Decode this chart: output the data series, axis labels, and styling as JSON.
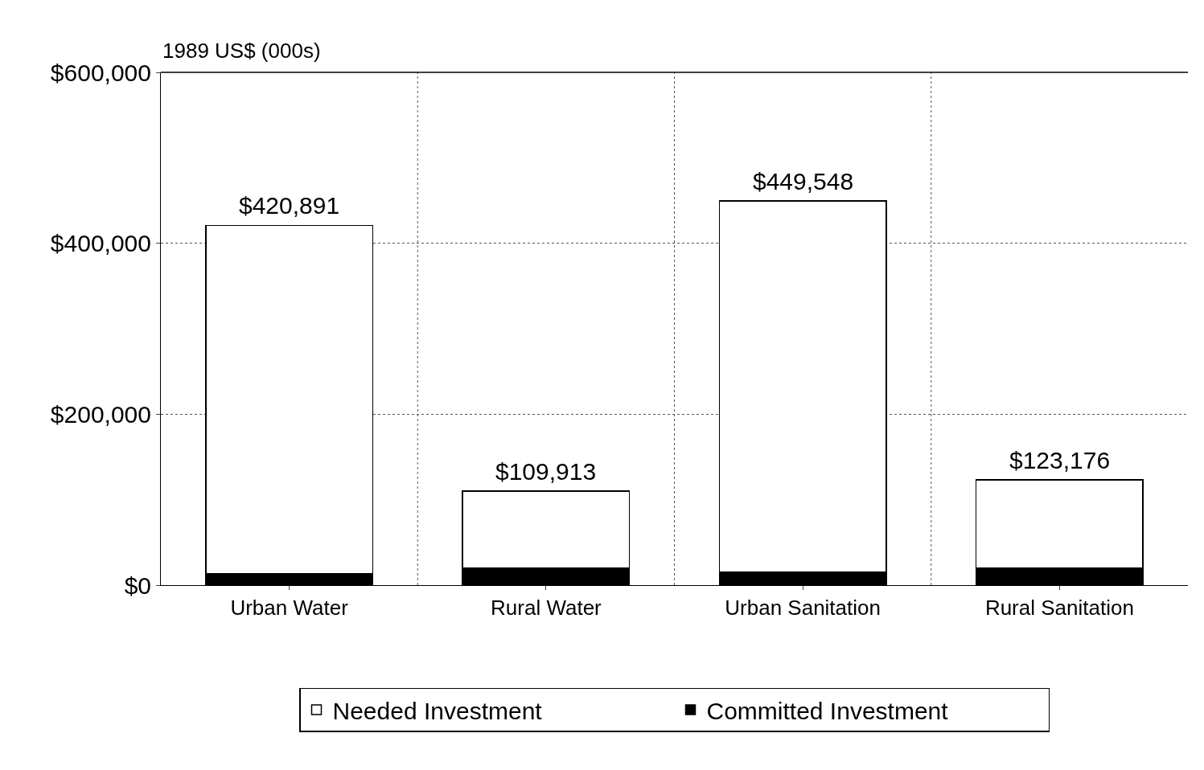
{
  "chart_data": {
    "type": "bar",
    "ylabel": "1989 US$ (000s)",
    "categories": [
      "Urban Water",
      "Rural Water",
      "Urban Sanitation",
      "Rural Sanitation"
    ],
    "stacked": true,
    "series": [
      {
        "name": "Committed Investment",
        "color": "#000000",
        "values": [
          13000,
          20000,
          15000,
          20000
        ]
      },
      {
        "name": "Needed Investment",
        "color": "#ffffff",
        "values": [
          407891,
          89913,
          434548,
          103176
        ]
      }
    ],
    "totals": [
      "$420,891",
      "$109,913",
      "$449,548",
      "$123,176"
    ],
    "ylim": [
      0,
      600000
    ],
    "yticks": [
      {
        "value": 0,
        "label": "$0"
      },
      {
        "value": 200000,
        "label": "$200,000"
      },
      {
        "value": 400000,
        "label": "$400,000"
      },
      {
        "value": 600000,
        "label": "$600,000"
      }
    ],
    "grid": true,
    "legend": "bottom"
  }
}
